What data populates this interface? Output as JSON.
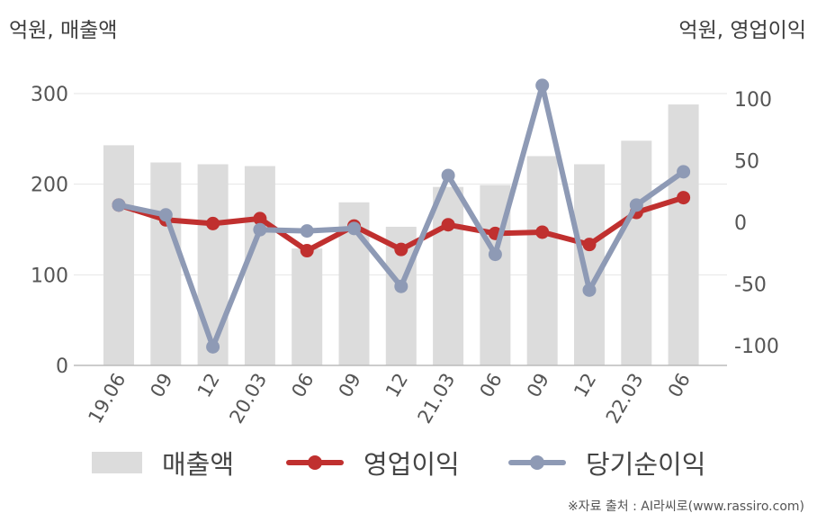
{
  "labels": {
    "unit_left": "억원, 매출액",
    "unit_right": "억원, 영업이익",
    "source": "※자료 출처 : AI라씨로(www.rassiro.com)"
  },
  "colors": {
    "bar": "#dcdcdc",
    "operating_profit": "#c0302f",
    "net_income": "#8e9ab5",
    "grid": "#e6e6e6",
    "axis": "#bbbbbb"
  },
  "chart_data": {
    "type": "bar+line",
    "categories": [
      "19.06",
      "09",
      "12",
      "20.03",
      "06",
      "09",
      "12",
      "21.03",
      "06",
      "09",
      "12",
      "22.03",
      "06"
    ],
    "left_axis": {
      "label": "억원, 매출액",
      "ylim": [
        0,
        300
      ],
      "ticks": [
        0,
        100,
        200,
        300
      ]
    },
    "right_axis": {
      "label": "억원, 영업이익",
      "ylim": [
        -120,
        110
      ],
      "ticks": [
        -100,
        -50,
        0,
        50,
        100
      ]
    },
    "grid": true,
    "legend_position": "bottom",
    "series": [
      {
        "name": "매출액",
        "kind": "bar",
        "axis": "left",
        "values": [
          243,
          224,
          222,
          220,
          129,
          180,
          153,
          197,
          199,
          231,
          222,
          248,
          288
        ]
      },
      {
        "name": "영업이익",
        "kind": "line",
        "axis": "right",
        "values": [
          14,
          2,
          -1,
          3,
          -23,
          -3,
          -22,
          -2,
          -9,
          -8,
          -18,
          8,
          20
        ]
      },
      {
        "name": "당기순이익",
        "kind": "line",
        "axis": "right",
        "values": [
          14,
          6,
          -101,
          -6,
          -7,
          -5,
          -52,
          38,
          -26,
          111,
          -55,
          14,
          41
        ]
      }
    ]
  }
}
